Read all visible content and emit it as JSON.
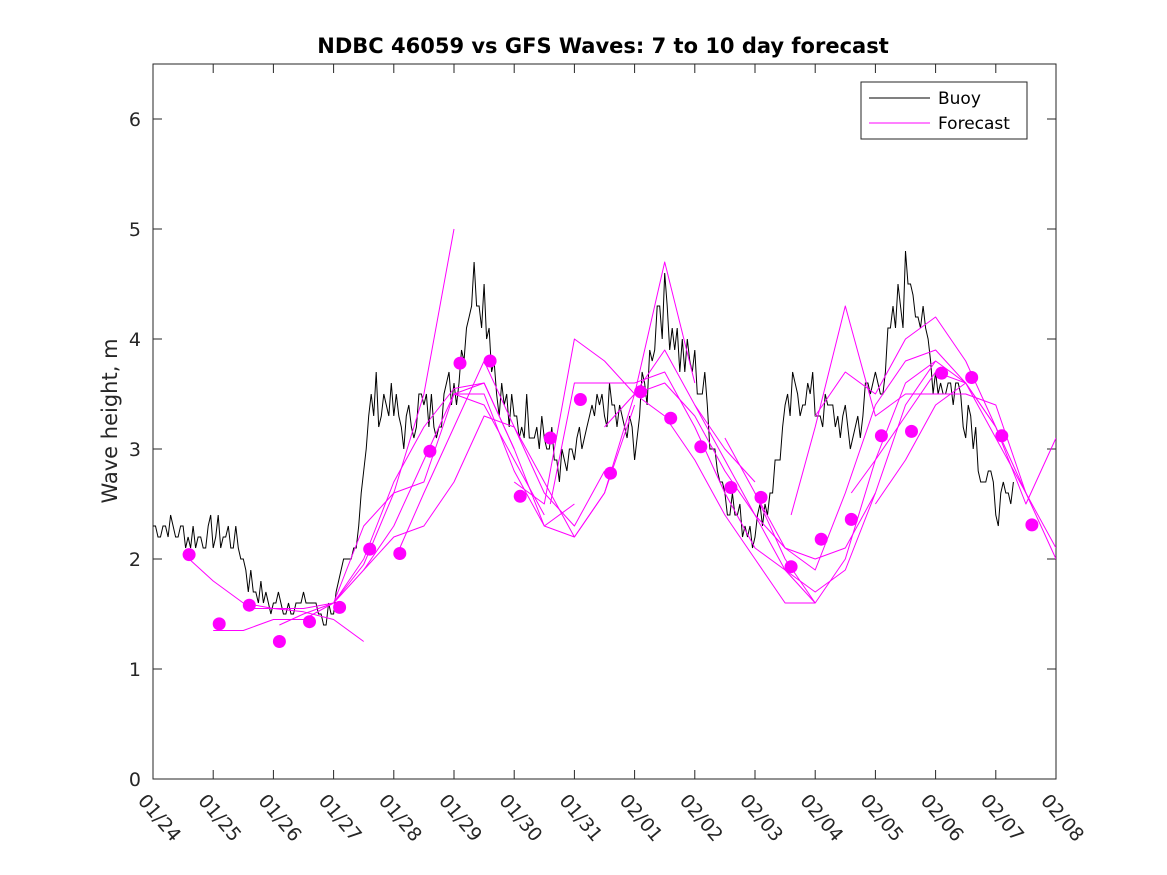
{
  "chart_data": {
    "type": "line",
    "title": "NDBC 46059 vs GFS Waves: 7 to 10 day forecast",
    "xlabel": "",
    "ylabel": "Wave height, m",
    "xlim": [
      0,
      15
    ],
    "ylim": [
      0,
      6.5
    ],
    "x_ticks": [
      0,
      1,
      2,
      3,
      4,
      5,
      6,
      7,
      8,
      9,
      10,
      11,
      12,
      13,
      14,
      15
    ],
    "x_tick_labels": [
      "01/24",
      "01/25",
      "01/26",
      "01/27",
      "01/28",
      "01/29",
      "01/30",
      "01/31",
      "02/01",
      "02/02",
      "02/03",
      "02/04",
      "02/05",
      "02/06",
      "02/07",
      "02/08"
    ],
    "y_ticks": [
      0,
      1,
      2,
      3,
      4,
      5,
      6
    ],
    "y_tick_labels": [
      "0",
      "1",
      "2",
      "3",
      "4",
      "5",
      "6"
    ],
    "legend": [
      {
        "label": "Buoy",
        "color": "#000000"
      },
      {
        "label": "Forecast",
        "color": "#ff00ff"
      }
    ],
    "legend_position": "top-right",
    "colors": {
      "buoy": "#000000",
      "forecast": "#ff00ff"
    },
    "series": [
      {
        "name": "Buoy",
        "note": "x in days since 01/24 00Z, y in meters (key points, rendered with hourly noise)",
        "x": [
          0,
          0.3,
          0.6,
          1.0,
          1.3,
          1.5,
          1.6,
          1.8,
          1.9,
          2.1,
          2.4,
          2.6,
          2.8,
          2.9,
          3.0,
          3.1,
          3.2,
          3.3,
          3.4,
          3.5,
          3.6,
          3.7,
          3.8,
          3.9,
          4.0,
          4.2,
          4.4,
          4.6,
          4.8,
          5.0,
          5.1,
          5.2,
          5.3,
          5.4,
          5.5,
          5.6,
          5.7,
          5.8,
          5.9,
          6.0,
          6.2,
          6.4,
          6.6,
          6.8,
          7.0,
          7.2,
          7.4,
          7.6,
          7.8,
          8.0,
          8.2,
          8.4,
          8.6,
          8.8,
          9.0,
          9.2,
          9.4,
          9.6,
          9.8,
          10.0,
          10.2,
          10.4,
          10.6,
          10.8,
          11.0,
          11.2,
          11.4,
          11.6,
          11.8,
          12.0,
          12.2,
          12.4,
          12.6,
          12.8,
          13.0,
          13.2,
          13.4,
          13.6,
          13.8,
          14.0,
          14.2,
          14.3
        ],
        "y": [
          2.3,
          2.3,
          2.2,
          2.2,
          2.2,
          2.0,
          1.8,
          1.7,
          1.6,
          1.6,
          1.6,
          1.6,
          1.5,
          1.5,
          1.6,
          1.7,
          1.9,
          2.0,
          2.3,
          2.9,
          3.3,
          3.5,
          3.4,
          3.5,
          3.3,
          3.2,
          3.4,
          3.3,
          3.4,
          3.6,
          3.8,
          4.2,
          4.5,
          4.5,
          4.4,
          4.1,
          3.6,
          3.5,
          3.3,
          3.2,
          3.3,
          3.3,
          3.0,
          2.8,
          2.9,
          3.1,
          3.3,
          3.4,
          3.2,
          3.1,
          3.6,
          4.4,
          4.2,
          3.8,
          3.7,
          3.4,
          2.8,
          2.5,
          2.3,
          2.3,
          2.5,
          3.0,
          3.4,
          3.6,
          3.4,
          3.3,
          3.3,
          3.1,
          3.4,
          3.6,
          3.8,
          4.3,
          4.7,
          4.0,
          3.7,
          3.6,
          3.5,
          3.3,
          2.8,
          2.5,
          2.5,
          2.5
        ]
      },
      {
        "name": "Forecast",
        "markers": {
          "x": [
            0.6,
            1.1,
            1.6,
            2.1,
            2.6,
            3.1,
            3.6,
            4.1,
            4.6,
            5.1,
            5.6,
            6.1,
            6.6,
            7.1,
            7.6,
            8.1,
            8.6,
            9.1,
            9.6,
            10.1,
            10.6,
            11.1,
            11.6,
            12.1,
            12.6,
            13.1,
            13.6,
            14.1,
            14.6
          ],
          "y": [
            2.04,
            1.41,
            1.58,
            1.25,
            1.43,
            1.56,
            2.09,
            2.05,
            2.98,
            3.78,
            3.8,
            2.57,
            3.1,
            3.45,
            2.78,
            3.52,
            3.28,
            3.02,
            2.65,
            2.56,
            1.93,
            2.18,
            2.36,
            3.12,
            3.16,
            3.69,
            3.65,
            3.12,
            2.31
          ]
        },
        "runs": [
          {
            "x": [
              0.6,
              1.0,
              1.5,
              2.0,
              2.5,
              3.0,
              3.5
            ],
            "y": [
              2.0,
              1.8,
              1.6,
              1.55,
              1.52,
              1.45,
              1.25
            ]
          },
          {
            "x": [
              1.0,
              1.5,
              2.0,
              2.5,
              3.0,
              3.5,
              4.0,
              4.5,
              5.0
            ],
            "y": [
              1.35,
              1.35,
              1.45,
              1.45,
              1.6,
              1.95,
              2.6,
              3.5,
              5.0
            ]
          },
          {
            "x": [
              1.6,
              2.0,
              2.5,
              3.0,
              3.5,
              4.0,
              4.5,
              5.0,
              5.5,
              6.0
            ],
            "y": [
              1.55,
              1.55,
              1.55,
              1.6,
              2.0,
              2.7,
              3.2,
              3.55,
              3.6,
              3.0
            ]
          },
          {
            "x": [
              2.1,
              2.5,
              3.0,
              3.5,
              4.0,
              4.5,
              5.0,
              5.5,
              6.0,
              6.5
            ],
            "y": [
              1.4,
              1.5,
              1.6,
              1.9,
              2.3,
              2.9,
              3.5,
              3.4,
              2.9,
              2.4
            ]
          },
          {
            "x": [
              3.0,
              3.5,
              4.0,
              4.5,
              5.0,
              5.5,
              6.0,
              6.5,
              7.0
            ],
            "y": [
              1.6,
              2.3,
              2.6,
              2.7,
              3.5,
              3.5,
              2.8,
              2.3,
              2.5
            ]
          },
          {
            "x": [
              3.5,
              4.0,
              4.5,
              5.0,
              5.5,
              6.0,
              6.5,
              7.0,
              7.5
            ],
            "y": [
              1.9,
              2.2,
              2.3,
              2.7,
              3.3,
              3.2,
              2.6,
              2.3,
              2.8
            ]
          },
          {
            "x": [
              4.1,
              4.5,
              5.0,
              5.5,
              6.0,
              6.5,
              7.0,
              7.5,
              8.0
            ],
            "y": [
              2.1,
              2.6,
              3.2,
              3.8,
              3.2,
              2.7,
              2.2,
              2.6,
              3.4
            ]
          },
          {
            "x": [
              5.0,
              5.5,
              6.0,
              6.5,
              7.0,
              7.5,
              8.0,
              8.5,
              9.0
            ],
            "y": [
              3.5,
              3.6,
              3.0,
              2.3,
              2.2,
              2.6,
              3.5,
              4.7,
              3.6
            ]
          },
          {
            "x": [
              6.0,
              6.5,
              7.0,
              7.5,
              8.0,
              8.5,
              9.0,
              9.5,
              10.0
            ],
            "y": [
              2.7,
              2.5,
              4.0,
              3.8,
              3.5,
              3.9,
              3.4,
              3.0,
              2.7
            ]
          },
          {
            "x": [
              6.6,
              7.0,
              7.5,
              8.0,
              8.5,
              9.0,
              9.5,
              10.0,
              10.5,
              11.0
            ],
            "y": [
              2.5,
              3.6,
              3.6,
              3.6,
              3.7,
              3.2,
              2.6,
              2.1,
              1.9,
              1.6
            ]
          },
          {
            "x": [
              7.5,
              8.0,
              8.5,
              9.0,
              9.5,
              10.0,
              10.5,
              11.0
            ],
            "y": [
              3.2,
              3.5,
              3.3,
              2.9,
              2.4,
              2.0,
              1.6,
              1.6
            ]
          },
          {
            "x": [
              8.0,
              8.5,
              9.0,
              9.5,
              10.0,
              10.5,
              11.0,
              11.5,
              12.0
            ],
            "y": [
              3.5,
              3.6,
              3.3,
              2.8,
              2.4,
              2.1,
              2.0,
              2.1,
              2.6
            ]
          },
          {
            "x": [
              9.0,
              9.5,
              10.0,
              10.5,
              11.0,
              11.5,
              12.0,
              12.5,
              13.0
            ],
            "y": [
              3.4,
              2.9,
              2.4,
              1.9,
              1.7,
              1.9,
              2.6,
              3.4,
              3.8
            ]
          },
          {
            "x": [
              9.5,
              10.0,
              10.5,
              11.0,
              11.5,
              12.0,
              12.5,
              13.0,
              13.5
            ],
            "y": [
              3.1,
              2.6,
              2.0,
              1.6,
              2.0,
              2.9,
              3.6,
              3.8,
              3.6
            ]
          },
          {
            "x": [
              10.0,
              10.5,
              11.0,
              11.5,
              12.0,
              12.5,
              13.0,
              13.5,
              14.0
            ],
            "y": [
              2.6,
              2.1,
              1.9,
              2.6,
              3.4,
              3.8,
              3.9,
              3.6,
              3.2
            ]
          },
          {
            "x": [
              10.6,
              11.0,
              11.5,
              12.0,
              12.5,
              13.0,
              13.5,
              14.0,
              14.5
            ],
            "y": [
              2.4,
              3.2,
              4.3,
              3.3,
              3.5,
              3.5,
              3.5,
              3.4,
              2.6
            ]
          },
          {
            "x": [
              11.0,
              11.5,
              12.0,
              12.5,
              13.0,
              13.5,
              14.0,
              14.5,
              15.0
            ],
            "y": [
              3.3,
              3.7,
              3.5,
              4.0,
              4.2,
              3.8,
              3.2,
              2.6,
              2.1
            ]
          },
          {
            "x": [
              11.6,
              12.0,
              12.5,
              13.0,
              13.5,
              14.0,
              14.5,
              15.0
            ],
            "y": [
              2.6,
              2.9,
              3.3,
              3.7,
              3.6,
              3.1,
              2.6,
              2.0
            ]
          },
          {
            "x": [
              12.0,
              12.5,
              13.0,
              13.5,
              14.0,
              14.5,
              15.0
            ],
            "y": [
              2.5,
              2.9,
              3.4,
              3.6,
              3.2,
              2.5,
              3.1
            ]
          }
        ]
      }
    ]
  }
}
